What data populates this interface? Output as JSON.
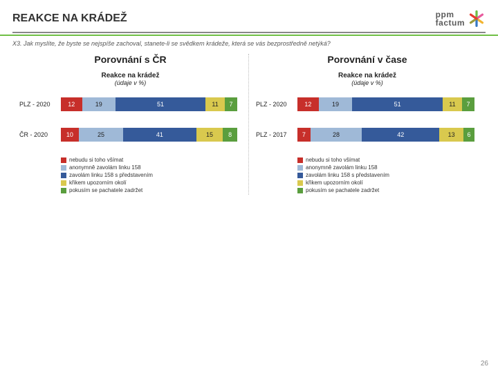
{
  "header": {
    "title": "REAKCE NA KRÁDEŽ",
    "logo_line1": "ppm",
    "logo_line2": "factum"
  },
  "question": "X3. Jak myslíte, že byste se nejspíše zachoval, stanete-li se svědkem krádeže, která se vás bezprostředně netýká?",
  "colors": {
    "red": "#c72f2a",
    "lightblue": "#9fb9d7",
    "darkblue": "#355a9a",
    "yellow": "#d9c94e",
    "green": "#5a9e3e",
    "seg_text_dark": "#222"
  },
  "panels": [
    {
      "title": "Porovnání s ČR",
      "chart_title": "Reakce na krádež",
      "chart_sub": "(údaje v %)",
      "rows": [
        {
          "label": "PLZ - 2020",
          "values": [
            12,
            19,
            51,
            11,
            7
          ]
        },
        {
          "label": "ČR - 2020",
          "values": [
            10,
            25,
            41,
            15,
            8
          ]
        }
      ]
    },
    {
      "title": "Porovnání v čase",
      "chart_title": "Reakce na krádež",
      "chart_sub": "(údaje v %)",
      "rows": [
        {
          "label": "PLZ - 2020",
          "values": [
            12,
            19,
            51,
            11,
            7
          ]
        },
        {
          "label": "PLZ - 2017",
          "values": [
            7,
            28,
            42,
            13,
            6
          ]
        }
      ]
    }
  ],
  "legend": [
    "nebudu si toho všímat",
    "anonymně zavolám linku 158",
    "zavolám linku 158 s představením",
    "křikem upozorním okolí",
    "pokusím se pachatele zadržet"
  ],
  "pagenum": "26"
}
